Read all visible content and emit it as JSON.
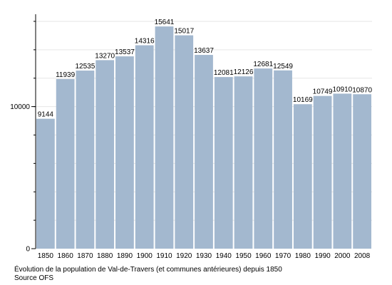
{
  "chart_data": {
    "type": "bar",
    "categories": [
      "1850",
      "1860",
      "1870",
      "1880",
      "1890",
      "1900",
      "1910",
      "1920",
      "1930",
      "1940",
      "1950",
      "1960",
      "1970",
      "1980",
      "1990",
      "2000",
      "2008"
    ],
    "values": [
      9144,
      11939,
      12535,
      13270,
      13537,
      14316,
      15641,
      15017,
      13637,
      12081,
      12126,
      12681,
      12549,
      10169,
      10749,
      10910,
      10870
    ],
    "data_labels": [
      "9144",
      "11939",
      "12535",
      "13270",
      "13537",
      "14316",
      "15641",
      "15017",
      "13637",
      "12081",
      "12126",
      "12681",
      "12549",
      "10169",
      "10749",
      "10910",
      "10870"
    ],
    "y_tick_labels": [
      {
        "value": 0,
        "label": "0"
      },
      {
        "value": 10000,
        "label": "10000"
      }
    ],
    "ylim": [
      0,
      16500
    ],
    "grid": true,
    "bar_color": "#a3b8cf",
    "caption": "Évolution de la population de Val-de-Travers (et communes antérieures) depuis 1850",
    "source": "Source OFS"
  }
}
